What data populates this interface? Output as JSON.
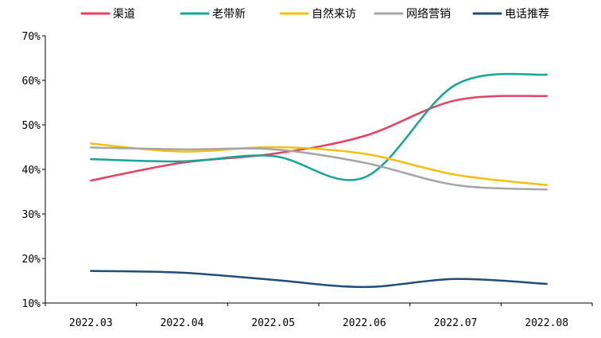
{
  "chart_data": {
    "type": "line",
    "title": "",
    "xlabel": "",
    "ylabel": "",
    "categories": [
      "2022.03",
      "2022.04",
      "2022.05",
      "2022.06",
      "2022.07",
      "2022.08"
    ],
    "ylim": [
      10,
      70
    ],
    "y_ticks": [
      10,
      20,
      30,
      40,
      50,
      60,
      70
    ],
    "y_tick_labels": [
      "10%",
      "20%",
      "30%",
      "40%",
      "50%",
      "60%",
      "70%"
    ],
    "grid": false,
    "legend_position": "top-center",
    "series": [
      {
        "name": "渠道",
        "color": "#e8405f",
        "values": [
          37.5,
          41.5,
          43.5,
          47.5,
          55.5,
          56.5
        ]
      },
      {
        "name": "老带新",
        "color": "#14a697",
        "values": [
          42.3,
          41.8,
          43.0,
          38.2,
          59.0,
          61.3
        ]
      },
      {
        "name": "自然来访",
        "color": "#f5c012",
        "values": [
          45.8,
          44.0,
          45.0,
          43.5,
          38.8,
          36.5
        ]
      },
      {
        "name": "网络营销",
        "color": "#a6a6a6",
        "values": [
          44.9,
          44.5,
          44.5,
          41.5,
          36.5,
          35.5
        ]
      },
      {
        "name": "电话推荐",
        "color": "#1f4e79",
        "values": [
          17.2,
          16.8,
          15.2,
          13.6,
          15.4,
          14.3
        ]
      }
    ]
  }
}
